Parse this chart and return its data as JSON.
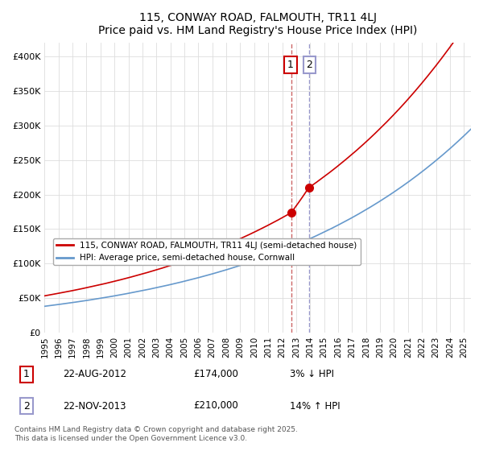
{
  "title": "115, CONWAY ROAD, FALMOUTH, TR11 4LJ",
  "subtitle": "Price paid vs. HM Land Registry's House Price Index (HPI)",
  "legend_line1": "115, CONWAY ROAD, FALMOUTH, TR11 4LJ (semi-detached house)",
  "legend_line2": "HPI: Average price, semi-detached house, Cornwall",
  "transaction1_date": "22-AUG-2012",
  "transaction1_price": "£174,000",
  "transaction1_hpi": "3% ↓ HPI",
  "transaction2_date": "22-NOV-2013",
  "transaction2_price": "£210,000",
  "transaction2_hpi": "14% ↑ HPI",
  "footer": "Contains HM Land Registry data © Crown copyright and database right 2025.\nThis data is licensed under the Open Government Licence v3.0.",
  "ylim": [
    0,
    420000
  ],
  "yticks": [
    0,
    50000,
    100000,
    150000,
    200000,
    250000,
    300000,
    350000,
    400000
  ],
  "ytick_labels": [
    "£0",
    "£50K",
    "£100K",
    "£150K",
    "£200K",
    "£250K",
    "£300K",
    "£350K",
    "£400K"
  ],
  "red_line_color": "#cc0000",
  "blue_line_color": "#6699cc",
  "vline1_color": "#cc6666",
  "vline2_color": "#9999cc",
  "marker1_x": 2012.65,
  "marker1_y": 174000,
  "marker2_x": 2013.9,
  "marker2_y": 210000,
  "xmin": 1995,
  "xmax": 2025.5
}
